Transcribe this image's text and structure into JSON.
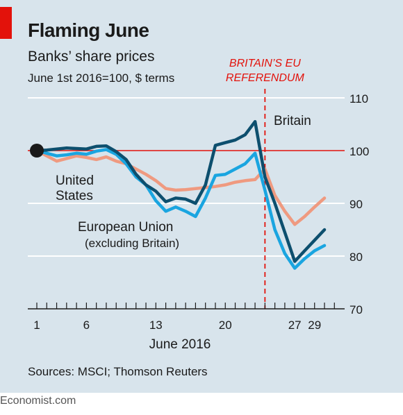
{
  "title": "Flaming June",
  "subtitle": "Banks’ share prices",
  "note": "June 1st 2016=100, $ terms",
  "source": "Sources: MSCI; Thomson Reuters",
  "footer": "Economist.com",
  "colors": {
    "background": "#d8e4ec",
    "accent": "#e3120b",
    "britain": "#0d4f6e",
    "european_union": "#1aa5e0",
    "united_states": "#ef9a80"
  },
  "chart_data": {
    "type": "line",
    "xlabel": "June 2016",
    "ylabel": "",
    "xlim": [
      1,
      30
    ],
    "ylim": [
      70,
      110
    ],
    "x_ticks": [
      1,
      6,
      13,
      20,
      27,
      29
    ],
    "y_ticks": [
      70,
      80,
      90,
      100,
      110
    ],
    "baseline": 100,
    "grid": true,
    "reference_line": {
      "x": 24,
      "label_lines": [
        "BRITAIN’S EU",
        "REFERENDUM"
      ]
    },
    "series": [
      {
        "name": "Britain",
        "color_key": "britain",
        "x": [
          1,
          2,
          3,
          4,
          5,
          6,
          7,
          8,
          9,
          10,
          11,
          12,
          13,
          14,
          15,
          16,
          17,
          18,
          19,
          20,
          21,
          22,
          23,
          24,
          25,
          26,
          27,
          28,
          29,
          30
        ],
        "values": [
          100,
          100.1,
          100.3,
          100.5,
          100.4,
          100.3,
          100.8,
          100.9,
          99.8,
          98.3,
          95.5,
          93.5,
          92.3,
          90.3,
          91.0,
          90.8,
          90.0,
          93.5,
          101.0,
          101.5,
          102.0,
          103.0,
          105.5,
          95.0,
          90.0,
          84.5,
          79.0,
          81.0,
          83.0,
          85.0
        ]
      },
      {
        "name": "European Union",
        "name_lines": [
          "European Union",
          "(excluding Britain)"
        ],
        "color_key": "european_union",
        "x": [
          1,
          2,
          3,
          4,
          5,
          6,
          7,
          8,
          9,
          10,
          11,
          12,
          13,
          14,
          15,
          16,
          17,
          18,
          19,
          20,
          21,
          22,
          23,
          24,
          25,
          26,
          27,
          28,
          29,
          30
        ],
        "values": [
          100,
          99.5,
          99.0,
          99.2,
          99.5,
          99.3,
          99.9,
          100.2,
          99.3,
          97.5,
          95.0,
          93.5,
          90.5,
          88.5,
          89.3,
          88.5,
          87.5,
          91.0,
          95.3,
          95.5,
          96.5,
          97.5,
          99.5,
          92.5,
          85.0,
          80.5,
          77.7,
          79.5,
          81.0,
          82.0
        ]
      },
      {
        "name": "United States",
        "name_lines": [
          "United",
          "States"
        ],
        "color_key": "united_states",
        "x": [
          1,
          2,
          3,
          4,
          5,
          6,
          7,
          8,
          9,
          10,
          11,
          12,
          13,
          14,
          15,
          16,
          17,
          18,
          19,
          20,
          21,
          22,
          23,
          24,
          25,
          26,
          27,
          28,
          29,
          30
        ],
        "values": [
          100,
          99.0,
          98.0,
          98.5,
          99.0,
          98.7,
          98.3,
          98.8,
          98.0,
          97.5,
          96.5,
          95.5,
          94.3,
          92.8,
          92.5,
          92.6,
          92.8,
          93.0,
          93.2,
          93.5,
          94.0,
          94.3,
          94.5,
          96.5,
          91.5,
          88.5,
          86.0,
          87.5,
          89.3,
          91.0
        ]
      }
    ],
    "legend": "inline labels"
  }
}
